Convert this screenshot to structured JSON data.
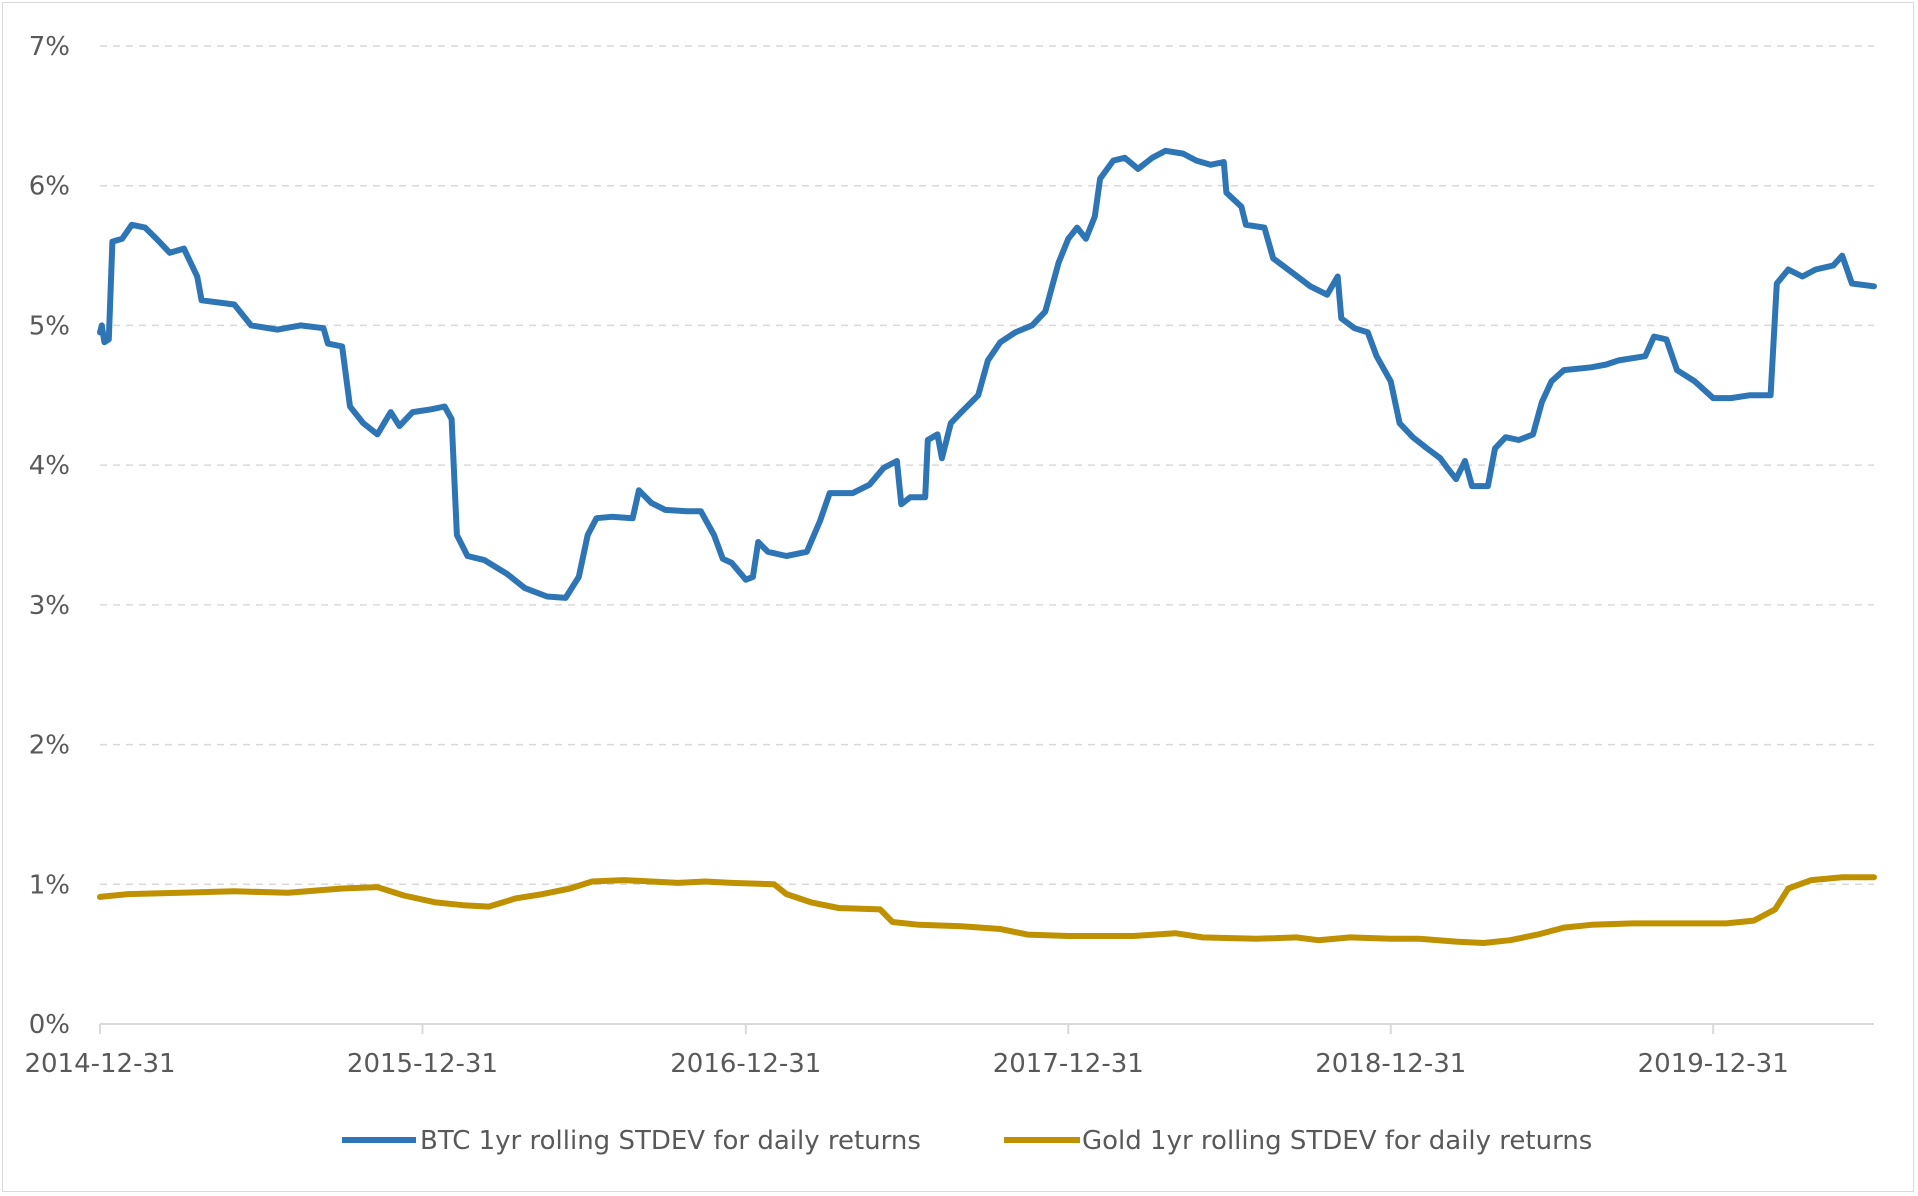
{
  "chart_data": {
    "type": "line",
    "title": "",
    "xlabel": "",
    "ylabel": "",
    "ylim": [
      0,
      7
    ],
    "xlim": [
      "2014-12-31",
      "2020-06-30"
    ],
    "y_ticks": [
      0,
      1,
      2,
      3,
      4,
      5,
      6,
      7
    ],
    "y_tick_labels": [
      "0%",
      "1%",
      "2%",
      "3%",
      "4%",
      "5%",
      "6%",
      "7%"
    ],
    "x_ticks": [
      "2014-12-31",
      "2015-12-31",
      "2016-12-31",
      "2017-12-31",
      "2018-12-31",
      "2019-12-31"
    ],
    "x_tick_labels": [
      "2014-12-31",
      "2015-12-31",
      "2016-12-31",
      "2017-12-31",
      "2018-12-31",
      "2019-12-31"
    ],
    "grid": "horizontal dashed",
    "legend_position": "bottom",
    "series": [
      {
        "name": "BTC 1yr rolling STDEV for daily returns",
        "color": "#2e75b6",
        "points": [
          [
            "2014-12-31",
            4.95
          ],
          [
            "2015-01-02",
            5.0
          ],
          [
            "2015-01-05",
            4.88
          ],
          [
            "2015-01-10",
            4.9
          ],
          [
            "2015-01-14",
            5.6
          ],
          [
            "2015-01-25",
            5.62
          ],
          [
            "2015-02-05",
            5.72
          ],
          [
            "2015-02-20",
            5.7
          ],
          [
            "2015-03-05",
            5.62
          ],
          [
            "2015-03-20",
            5.52
          ],
          [
            "2015-04-05",
            5.55
          ],
          [
            "2015-04-20",
            5.35
          ],
          [
            "2015-04-25",
            5.18
          ],
          [
            "2015-06-01",
            5.15
          ],
          [
            "2015-06-20",
            5.0
          ],
          [
            "2015-07-20",
            4.97
          ],
          [
            "2015-08-15",
            5.0
          ],
          [
            "2015-09-10",
            4.98
          ],
          [
            "2015-09-15",
            4.87
          ],
          [
            "2015-10-01",
            4.85
          ],
          [
            "2015-10-10",
            4.42
          ],
          [
            "2015-10-25",
            4.3
          ],
          [
            "2015-11-10",
            4.22
          ],
          [
            "2015-11-25",
            4.38
          ],
          [
            "2015-12-05",
            4.28
          ],
          [
            "2015-12-20",
            4.38
          ],
          [
            "2016-01-10",
            4.4
          ],
          [
            "2016-01-25",
            4.42
          ],
          [
            "2016-02-02",
            4.33
          ],
          [
            "2016-02-08",
            3.5
          ],
          [
            "2016-02-20",
            3.35
          ],
          [
            "2016-03-10",
            3.32
          ],
          [
            "2016-04-05",
            3.22
          ],
          [
            "2016-04-25",
            3.12
          ],
          [
            "2016-05-20",
            3.06
          ],
          [
            "2016-06-10",
            3.05
          ],
          [
            "2016-06-25",
            3.2
          ],
          [
            "2016-07-05",
            3.5
          ],
          [
            "2016-07-15",
            3.62
          ],
          [
            "2016-08-01",
            3.63
          ],
          [
            "2016-08-25",
            3.62
          ],
          [
            "2016-09-01",
            3.82
          ],
          [
            "2016-09-15",
            3.73
          ],
          [
            "2016-10-01",
            3.68
          ],
          [
            "2016-10-25",
            3.67
          ],
          [
            "2016-11-10",
            3.67
          ],
          [
            "2016-11-25",
            3.5
          ],
          [
            "2016-12-05",
            3.33
          ],
          [
            "2016-12-15",
            3.3
          ],
          [
            "2016-12-31",
            3.18
          ],
          [
            "2017-01-08",
            3.2
          ],
          [
            "2017-01-14",
            3.45
          ],
          [
            "2017-01-25",
            3.38
          ],
          [
            "2017-02-15",
            3.35
          ],
          [
            "2017-03-10",
            3.38
          ],
          [
            "2017-03-25",
            3.6
          ],
          [
            "2017-04-05",
            3.8
          ],
          [
            "2017-05-01",
            3.8
          ],
          [
            "2017-05-20",
            3.86
          ],
          [
            "2017-06-05",
            3.98
          ],
          [
            "2017-06-20",
            4.03
          ],
          [
            "2017-06-25",
            3.72
          ],
          [
            "2017-07-05",
            3.77
          ],
          [
            "2017-07-22",
            3.77
          ],
          [
            "2017-07-25",
            4.18
          ],
          [
            "2017-08-05",
            4.22
          ],
          [
            "2017-08-10",
            4.05
          ],
          [
            "2017-08-20",
            4.3
          ],
          [
            "2017-09-01",
            4.38
          ],
          [
            "2017-09-20",
            4.5
          ],
          [
            "2017-10-01",
            4.75
          ],
          [
            "2017-10-15",
            4.88
          ],
          [
            "2017-11-01",
            4.95
          ],
          [
            "2017-11-20",
            5.0
          ],
          [
            "2017-12-05",
            5.1
          ],
          [
            "2017-12-20",
            5.45
          ],
          [
            "2017-12-31",
            5.62
          ],
          [
            "2018-01-10",
            5.7
          ],
          [
            "2018-01-20",
            5.62
          ],
          [
            "2018-01-30",
            5.78
          ],
          [
            "2018-02-05",
            6.05
          ],
          [
            "2018-02-20",
            6.18
          ],
          [
            "2018-03-05",
            6.2
          ],
          [
            "2018-03-20",
            6.12
          ],
          [
            "2018-04-05",
            6.2
          ],
          [
            "2018-04-20",
            6.25
          ],
          [
            "2018-05-10",
            6.23
          ],
          [
            "2018-05-25",
            6.18
          ],
          [
            "2018-06-10",
            6.15
          ],
          [
            "2018-06-25",
            6.17
          ],
          [
            "2018-06-28",
            5.95
          ],
          [
            "2018-07-15",
            5.85
          ],
          [
            "2018-07-20",
            5.72
          ],
          [
            "2018-08-10",
            5.7
          ],
          [
            "2018-08-20",
            5.48
          ],
          [
            "2018-09-10",
            5.38
          ],
          [
            "2018-10-01",
            5.28
          ],
          [
            "2018-10-20",
            5.22
          ],
          [
            "2018-11-01",
            5.35
          ],
          [
            "2018-11-05",
            5.05
          ],
          [
            "2018-11-20",
            4.98
          ],
          [
            "2018-12-05",
            4.95
          ],
          [
            "2018-12-15",
            4.78
          ],
          [
            "2018-12-31",
            4.6
          ],
          [
            "2019-01-10",
            4.3
          ],
          [
            "2019-01-25",
            4.2
          ],
          [
            "2019-02-10",
            4.12
          ],
          [
            "2019-02-25",
            4.05
          ],
          [
            "2019-03-05",
            3.98
          ],
          [
            "2019-03-15",
            3.9
          ],
          [
            "2019-03-25",
            4.03
          ],
          [
            "2019-04-02",
            3.85
          ],
          [
            "2019-04-20",
            3.85
          ],
          [
            "2019-04-28",
            4.12
          ],
          [
            "2019-05-10",
            4.2
          ],
          [
            "2019-05-25",
            4.18
          ],
          [
            "2019-06-10",
            4.22
          ],
          [
            "2019-06-20",
            4.45
          ],
          [
            "2019-07-01",
            4.6
          ],
          [
            "2019-07-15",
            4.68
          ],
          [
            "2019-08-15",
            4.7
          ],
          [
            "2019-09-01",
            4.72
          ],
          [
            "2019-09-15",
            4.75
          ],
          [
            "2019-10-15",
            4.78
          ],
          [
            "2019-10-25",
            4.92
          ],
          [
            "2019-11-08",
            4.9
          ],
          [
            "2019-11-20",
            4.68
          ],
          [
            "2019-12-10",
            4.6
          ],
          [
            "2019-12-31",
            4.48
          ],
          [
            "2020-01-20",
            4.48
          ],
          [
            "2020-02-10",
            4.5
          ],
          [
            "2020-03-05",
            4.5
          ],
          [
            "2020-03-12",
            5.3
          ],
          [
            "2020-03-25",
            5.4
          ],
          [
            "2020-04-10",
            5.35
          ],
          [
            "2020-04-25",
            5.4
          ],
          [
            "2020-05-15",
            5.43
          ],
          [
            "2020-05-25",
            5.5
          ],
          [
            "2020-06-05",
            5.3
          ],
          [
            "2020-06-30",
            5.28
          ]
        ]
      },
      {
        "name": "Gold 1yr rolling STDEV for daily returns",
        "color": "#bf9000",
        "points": [
          [
            "2014-12-31",
            0.91
          ],
          [
            "2015-02-01",
            0.93
          ],
          [
            "2015-04-01",
            0.94
          ],
          [
            "2015-06-01",
            0.95
          ],
          [
            "2015-08-01",
            0.94
          ],
          [
            "2015-10-01",
            0.97
          ],
          [
            "2015-11-10",
            0.98
          ],
          [
            "2015-12-10",
            0.92
          ],
          [
            "2016-01-15",
            0.87
          ],
          [
            "2016-02-15",
            0.85
          ],
          [
            "2016-03-15",
            0.84
          ],
          [
            "2016-04-15",
            0.9
          ],
          [
            "2016-05-15",
            0.93
          ],
          [
            "2016-06-15",
            0.97
          ],
          [
            "2016-07-10",
            1.02
          ],
          [
            "2016-08-15",
            1.03
          ],
          [
            "2016-09-15",
            1.02
          ],
          [
            "2016-10-15",
            1.01
          ],
          [
            "2016-11-15",
            1.02
          ],
          [
            "2016-12-15",
            1.01
          ],
          [
            "2017-02-01",
            1.0
          ],
          [
            "2017-02-15",
            0.93
          ],
          [
            "2017-03-15",
            0.87
          ],
          [
            "2017-04-15",
            0.83
          ],
          [
            "2017-06-01",
            0.82
          ],
          [
            "2017-06-15",
            0.73
          ],
          [
            "2017-07-15",
            0.71
          ],
          [
            "2017-09-01",
            0.7
          ],
          [
            "2017-10-15",
            0.68
          ],
          [
            "2017-11-15",
            0.64
          ],
          [
            "2018-01-01",
            0.63
          ],
          [
            "2018-03-15",
            0.63
          ],
          [
            "2018-05-01",
            0.65
          ],
          [
            "2018-06-01",
            0.62
          ],
          [
            "2018-08-01",
            0.61
          ],
          [
            "2018-09-15",
            0.62
          ],
          [
            "2018-10-10",
            0.6
          ],
          [
            "2018-11-15",
            0.62
          ],
          [
            "2018-12-31",
            0.61
          ],
          [
            "2019-02-01",
            0.61
          ],
          [
            "2019-03-15",
            0.59
          ],
          [
            "2019-04-15",
            0.58
          ],
          [
            "2019-05-15",
            0.6
          ],
          [
            "2019-06-15",
            0.64
          ],
          [
            "2019-07-15",
            0.69
          ],
          [
            "2019-08-15",
            0.71
          ],
          [
            "2019-10-01",
            0.72
          ],
          [
            "2019-12-01",
            0.72
          ],
          [
            "2020-01-15",
            0.72
          ],
          [
            "2020-02-15",
            0.74
          ],
          [
            "2020-03-10",
            0.82
          ],
          [
            "2020-03-25",
            0.97
          ],
          [
            "2020-04-20",
            1.03
          ],
          [
            "2020-05-25",
            1.05
          ],
          [
            "2020-06-30",
            1.05
          ]
        ]
      }
    ]
  }
}
